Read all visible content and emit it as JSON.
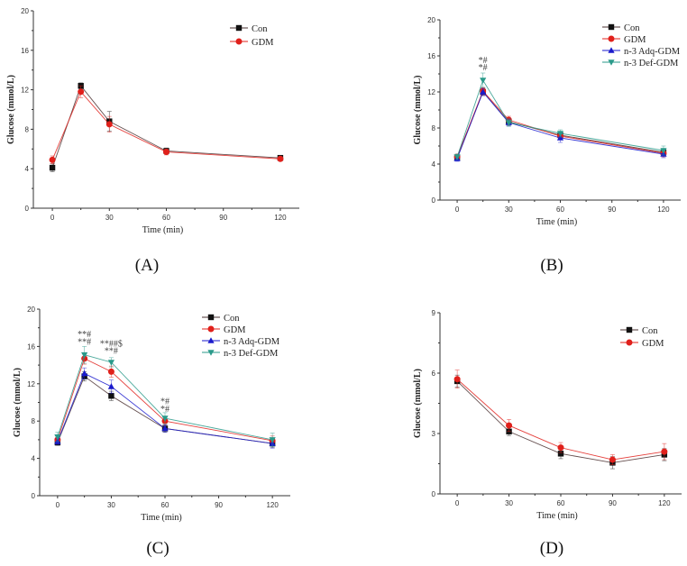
{
  "colors": {
    "Con": "#111111",
    "GDM": "#e0201b",
    "n-3 Adq-GDM": "#1a1acc",
    "n-3 Def-GDM": "#2a9a8a",
    "line_Con": "#4a3030"
  },
  "chart_data": [
    {
      "panel": "A",
      "type": "line",
      "xlabel": "Time (min)",
      "ylabel": "Glucose (mmol/L)",
      "xlim": [
        -10,
        130
      ],
      "ylim": [
        0,
        20
      ],
      "xticks": [
        0,
        30,
        60,
        90,
        120
      ],
      "yticks": [
        0,
        4,
        8,
        12,
        16,
        20
      ],
      "x": [
        0,
        15,
        30,
        60,
        120
      ],
      "legend_position": "top-right",
      "series": [
        {
          "name": "Con",
          "marker": "square",
          "values": [
            4.1,
            12.4,
            8.8,
            5.8,
            5.1
          ],
          "errors": [
            0.4,
            0.3,
            1.0,
            0.3,
            0.2
          ]
        },
        {
          "name": "GDM",
          "marker": "circle",
          "values": [
            4.9,
            11.8,
            8.5,
            5.7,
            5.0
          ],
          "errors": [
            0.4,
            0.6,
            0.8,
            0.3,
            0.2
          ]
        }
      ],
      "annotations": []
    },
    {
      "panel": "B",
      "type": "line",
      "xlabel": "Time (min)",
      "ylabel": "Glucose (mmol/L)",
      "xlim": [
        -10,
        130
      ],
      "ylim": [
        0,
        20
      ],
      "xticks": [
        0,
        30,
        60,
        90,
        120
      ],
      "yticks": [
        0,
        4,
        8,
        12,
        16,
        20
      ],
      "x": [
        0,
        15,
        30,
        60,
        120
      ],
      "legend_position": "top-right",
      "series": [
        {
          "name": "Con",
          "marker": "square",
          "values": [
            4.7,
            12.0,
            8.7,
            7.2,
            5.3
          ],
          "errors": [
            0.3,
            0.4,
            0.4,
            0.4,
            0.4
          ]
        },
        {
          "name": "GDM",
          "marker": "circle",
          "values": [
            4.8,
            12.1,
            8.9,
            7.1,
            5.2
          ],
          "errors": [
            0.3,
            0.4,
            0.4,
            0.4,
            0.4
          ]
        },
        {
          "name": "n-3 Adq-GDM",
          "marker": "triangle-up",
          "values": [
            4.6,
            12.0,
            8.6,
            6.9,
            5.1
          ],
          "errors": [
            0.3,
            0.4,
            0.4,
            0.5,
            0.4
          ]
        },
        {
          "name": "n-3 Def-GDM",
          "marker": "triangle-down",
          "values": [
            4.8,
            13.3,
            8.6,
            7.4,
            5.5
          ],
          "errors": [
            0.3,
            0.8,
            0.4,
            0.4,
            0.5
          ]
        }
      ],
      "annotations": [
        {
          "x": 15,
          "y": 15.2,
          "text": "*#"
        },
        {
          "x": 15,
          "y": 14.4,
          "text": "*#"
        }
      ]
    },
    {
      "panel": "C",
      "type": "line",
      "xlabel": "Time (min)",
      "ylabel": "Glucose (mmol/L)",
      "xlim": [
        -10,
        130
      ],
      "ylim": [
        0,
        20
      ],
      "xticks": [
        0,
        30,
        60,
        90,
        120
      ],
      "yticks": [
        0,
        4,
        8,
        12,
        16,
        20
      ],
      "x": [
        0,
        15,
        30,
        60,
        120
      ],
      "legend_position": "top-right",
      "series": [
        {
          "name": "Con",
          "marker": "square",
          "values": [
            5.7,
            12.8,
            10.7,
            7.2,
            5.6
          ],
          "errors": [
            0.3,
            0.5,
            0.5,
            0.4,
            0.4
          ]
        },
        {
          "name": "GDM",
          "marker": "circle",
          "values": [
            6.0,
            14.7,
            13.3,
            8.0,
            5.9
          ],
          "errors": [
            0.4,
            0.6,
            0.6,
            0.4,
            0.5
          ]
        },
        {
          "name": "n-3 Adq-GDM",
          "marker": "triangle-up",
          "values": [
            5.8,
            13.1,
            11.7,
            7.2,
            5.6
          ],
          "errors": [
            0.3,
            0.6,
            0.7,
            0.4,
            0.5
          ]
        },
        {
          "name": "n-3 Def-GDM",
          "marker": "triangle-down",
          "values": [
            6.3,
            15.1,
            14.3,
            8.3,
            6.0
          ],
          "errors": [
            0.5,
            0.9,
            0.5,
            0.6,
            0.7
          ]
        }
      ],
      "annotations": [
        {
          "x": 15,
          "y": 17.0,
          "text": "**#"
        },
        {
          "x": 15,
          "y": 16.2,
          "text": "**#"
        },
        {
          "x": 30,
          "y": 16.0,
          "text": "**##$"
        },
        {
          "x": 30,
          "y": 15.2,
          "text": "**#"
        },
        {
          "x": 60,
          "y": 9.8,
          "text": "*#"
        },
        {
          "x": 60,
          "y": 9.0,
          "text": "*#"
        }
      ]
    },
    {
      "panel": "D",
      "type": "line",
      "xlabel": "Time (min)",
      "ylabel": "Glucose (mmol/L)",
      "xlim": [
        -10,
        130
      ],
      "ylim": [
        0,
        9
      ],
      "xticks": [
        0,
        30,
        60,
        90,
        120
      ],
      "yticks": [
        0,
        3,
        6,
        9
      ],
      "x": [
        0,
        30,
        60,
        90,
        120
      ],
      "legend_position": "top-right",
      "series": [
        {
          "name": "Con",
          "marker": "square",
          "values": [
            5.6,
            3.1,
            2.0,
            1.55,
            1.95
          ],
          "errors": [
            0.3,
            0.2,
            0.25,
            0.3,
            0.3
          ]
        },
        {
          "name": "GDM",
          "marker": "circle",
          "values": [
            5.7,
            3.4,
            2.3,
            1.7,
            2.1
          ],
          "errors": [
            0.45,
            0.3,
            0.25,
            0.25,
            0.4
          ]
        }
      ],
      "annotations": []
    }
  ],
  "panel_labels": [
    "(A)",
    "(B)",
    "(C)",
    "(D)"
  ],
  "panel_letters": [
    "A",
    "B",
    "C",
    "D"
  ]
}
